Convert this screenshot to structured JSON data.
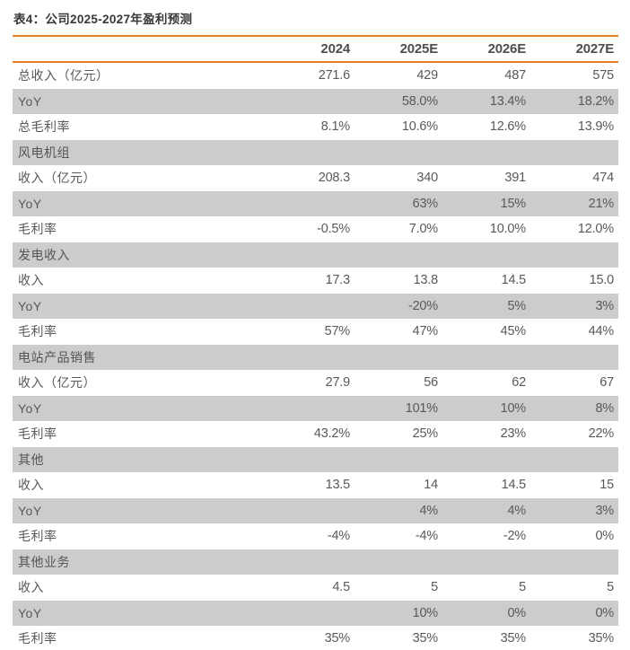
{
  "table": {
    "title": "表4：公司2025-2027年盈利预测",
    "columns": [
      "",
      "2024",
      "2025E",
      "2026E",
      "2027E"
    ],
    "rows": [
      {
        "type": "data",
        "label": "总收入（亿元）",
        "values": [
          "271.6",
          "429",
          "487",
          "575"
        ]
      },
      {
        "type": "data",
        "label": "YoY",
        "values": [
          "",
          "58.0%",
          "13.4%",
          "18.2%"
        ]
      },
      {
        "type": "data",
        "label": "总毛利率",
        "values": [
          "8.1%",
          "10.6%",
          "12.6%",
          "13.9%"
        ]
      },
      {
        "type": "section",
        "label": "风电机组",
        "values": [
          "",
          "",
          "",
          ""
        ]
      },
      {
        "type": "data",
        "label": "收入（亿元）",
        "values": [
          "208.3",
          "340",
          "391",
          "474"
        ]
      },
      {
        "type": "data",
        "label": "YoY",
        "values": [
          "",
          "63%",
          "15%",
          "21%"
        ]
      },
      {
        "type": "data",
        "label": "毛利率",
        "values": [
          "-0.5%",
          "7.0%",
          "10.0%",
          "12.0%"
        ]
      },
      {
        "type": "section",
        "label": "发电收入",
        "values": [
          "",
          "",
          "",
          ""
        ]
      },
      {
        "type": "data",
        "label": "收入",
        "values": [
          "17.3",
          "13.8",
          "14.5",
          "15.0"
        ]
      },
      {
        "type": "data",
        "label": "YoY",
        "values": [
          "",
          "-20%",
          "5%",
          "3%"
        ]
      },
      {
        "type": "data",
        "label": "毛利率",
        "values": [
          "57%",
          "47%",
          "45%",
          "44%"
        ]
      },
      {
        "type": "section",
        "label": "电站产品销售",
        "values": [
          "",
          "",
          "",
          ""
        ]
      },
      {
        "type": "data",
        "label": "收入（亿元）",
        "values": [
          "27.9",
          "56",
          "62",
          "67"
        ]
      },
      {
        "type": "data",
        "label": "YoY",
        "values": [
          "",
          "101%",
          "10%",
          "8%"
        ]
      },
      {
        "type": "data",
        "label": "毛利率",
        "values": [
          "43.2%",
          "25%",
          "23%",
          "22%"
        ]
      },
      {
        "type": "section",
        "label": "其他",
        "values": [
          "",
          "",
          "",
          ""
        ]
      },
      {
        "type": "data",
        "label": "收入",
        "values": [
          "13.5",
          "14",
          "14.5",
          "15"
        ]
      },
      {
        "type": "data",
        "label": "YoY",
        "values": [
          "",
          "4%",
          "4%",
          "3%"
        ]
      },
      {
        "type": "data",
        "label": "毛利率",
        "values": [
          "-4%",
          "-4%",
          "-2%",
          "0%"
        ]
      },
      {
        "type": "section",
        "label": "其他业务",
        "values": [
          "",
          "",
          "",
          ""
        ]
      },
      {
        "type": "data",
        "label": "收入",
        "values": [
          "4.5",
          "5",
          "5",
          "5"
        ]
      },
      {
        "type": "data",
        "label": "YoY",
        "values": [
          "",
          "10%",
          "0%",
          "0%"
        ]
      },
      {
        "type": "data",
        "label": "毛利率",
        "values": [
          "35%",
          "35%",
          "35%",
          "35%"
        ]
      }
    ],
    "colors": {
      "accent_orange": "#E87E23",
      "row_stripe_gray": "#CBCCCD",
      "body_text_gray": "#595959",
      "title_dark": "#383838"
    }
  }
}
